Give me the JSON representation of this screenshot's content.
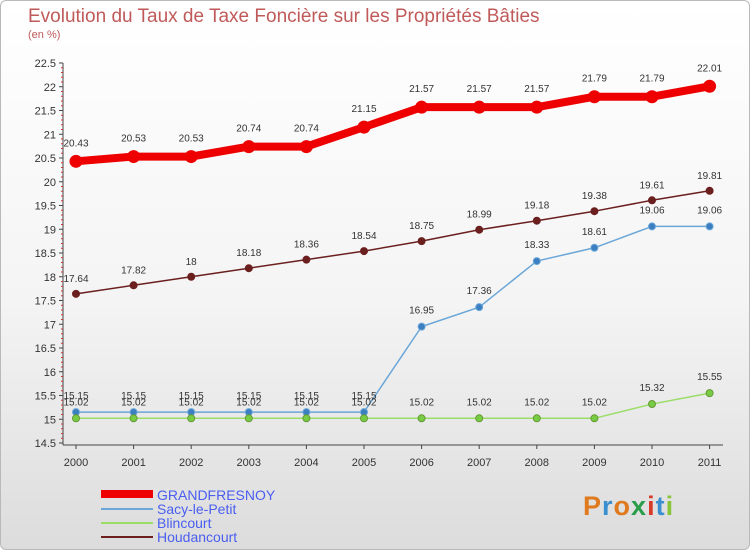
{
  "header": {
    "title": "Evolution du Taux de Taxe Foncière sur les Propriétés Bâties",
    "unit": "(en %)"
  },
  "colors": {
    "grandfresnoy": "#ee0000",
    "sacy": "#6aa6d8",
    "blincourt": "#99dd66",
    "houdancourt": "#6b1f1f"
  },
  "logo": {
    "letters": [
      "P",
      "r",
      "o",
      "x",
      "i",
      "t",
      "i"
    ],
    "colors": [
      "#e07a1f",
      "#3a8fd0",
      "#e07a1f",
      "#2a9d4a",
      "#d83a2a",
      "#3a8fd0",
      "#88c43a"
    ]
  },
  "chart_data": {
    "type": "line",
    "title": "Evolution du Taux de Taxe Foncière sur les Propriétés Bâties",
    "ylabel": "(en %)",
    "xlabel": "",
    "x": [
      "2000",
      "2001",
      "2002",
      "2003",
      "2004",
      "2005",
      "2006",
      "2007",
      "2008",
      "2009",
      "2010",
      "2011"
    ],
    "ylim": [
      14.5,
      22.5
    ],
    "yticks": [
      "14.5",
      "15",
      "15.5",
      "16",
      "16.5",
      "17",
      "17.5",
      "18",
      "18.5",
      "19",
      "19.5",
      "20",
      "20.5",
      "21",
      "21.5",
      "22",
      "22.5"
    ],
    "grid": false,
    "legend": "bottom-left",
    "series": [
      {
        "name": "GRANDFRESNOY",
        "values": [
          20.43,
          20.53,
          20.53,
          20.74,
          20.74,
          21.15,
          21.57,
          21.57,
          21.57,
          21.79,
          21.79,
          22.01
        ],
        "labels": [
          "20.43",
          "20.53",
          "20.53",
          "20.74",
          "20.74",
          "21.15",
          "21.57",
          "21.57",
          "21.57",
          "21.79",
          "21.79",
          "22.01"
        ]
      },
      {
        "name": "Sacy-le-Petit",
        "values": [
          15.15,
          15.15,
          15.15,
          15.15,
          15.15,
          15.15,
          16.95,
          17.36,
          18.33,
          18.61,
          19.06,
          19.06
        ],
        "labels": [
          "15.15",
          "15.15",
          "15.15",
          "15.15",
          "15.15",
          "15.15",
          "16.95",
          "17.36",
          "18.33",
          "18.61",
          "19.06",
          "19.06"
        ]
      },
      {
        "name": "Blincourt",
        "values": [
          15.02,
          15.02,
          15.02,
          15.02,
          15.02,
          15.02,
          15.02,
          15.02,
          15.02,
          15.02,
          15.32,
          15.55
        ],
        "labels": [
          "15.02",
          "15.02",
          "15.02",
          "15.02",
          "15.02",
          "15.02",
          "15.02",
          "15.02",
          "15.02",
          "15.02",
          "15.32",
          "15.55"
        ]
      },
      {
        "name": "Houdancourt",
        "values": [
          17.64,
          17.82,
          18.0,
          18.18,
          18.36,
          18.54,
          18.75,
          18.99,
          19.18,
          19.38,
          19.61,
          19.81
        ],
        "labels": [
          "17.64",
          "17.82",
          "18",
          "18.18",
          "18.36",
          "18.54",
          "18.75",
          "18.99",
          "19.18",
          "19.38",
          "19.61",
          "19.81"
        ]
      }
    ]
  }
}
